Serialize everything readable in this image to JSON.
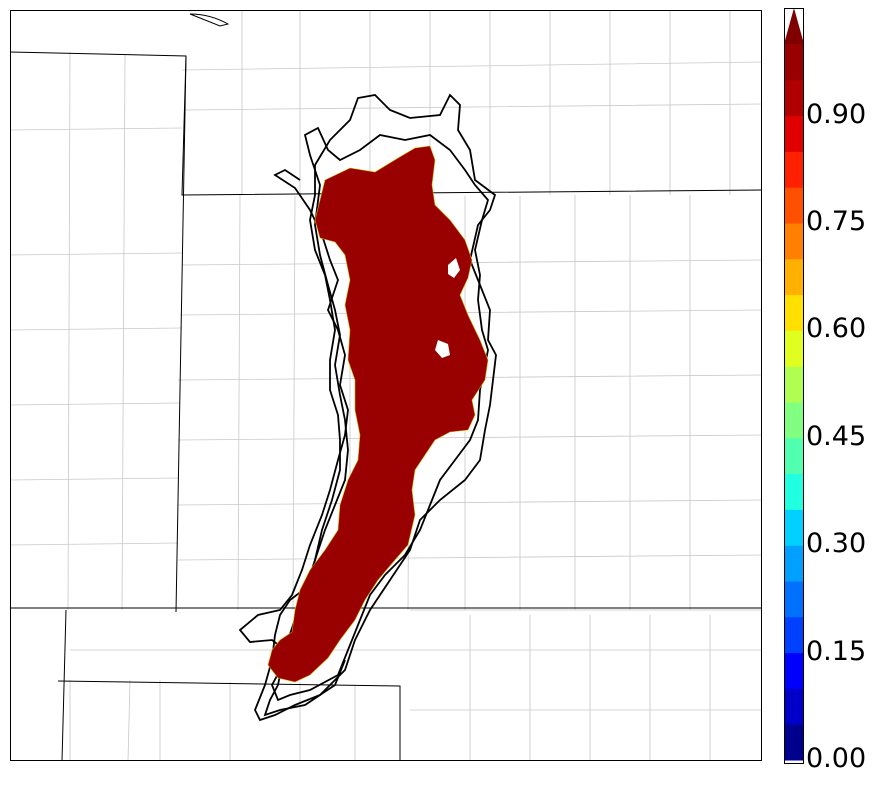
{
  "map": {
    "colormap": "jet",
    "fill_color": "#990000",
    "contour_color": "#000000",
    "county_line_color": "#c8c8c8",
    "state_line_color": "#000000",
    "border_color": "#000000"
  },
  "colorbar": {
    "min": 0.0,
    "max": 1.0,
    "extend": "max",
    "levels": [
      0.0,
      0.05,
      0.1,
      0.15,
      0.2,
      0.25,
      0.3,
      0.35,
      0.4,
      0.45,
      0.5,
      0.55,
      0.6,
      0.65,
      0.7,
      0.75,
      0.8,
      0.85,
      0.9,
      0.95,
      1.0
    ],
    "colors": [
      "#00008f",
      "#0000c8",
      "#0000ff",
      "#0040ff",
      "#0070ff",
      "#00a0ff",
      "#00d0ff",
      "#20ffe0",
      "#50ffb0",
      "#80ff80",
      "#b0ff50",
      "#e0ff20",
      "#ffe000",
      "#ffb000",
      "#ff8000",
      "#ff5000",
      "#ff2000",
      "#e00000",
      "#b00000",
      "#990000"
    ],
    "extend_color": "#800000",
    "ticks": [
      "0.00",
      "0.15",
      "0.30",
      "0.45",
      "0.60",
      "0.75",
      "0.90"
    ]
  }
}
